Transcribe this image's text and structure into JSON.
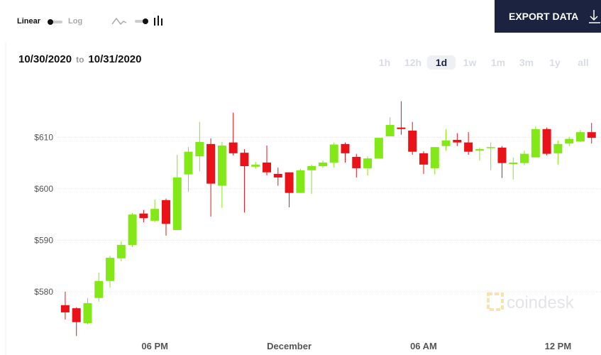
{
  "controls": {
    "linear": "Linear",
    "log": "Log",
    "export": "EXPORT DATA",
    "date_from": "10/30/2020",
    "date_sep": "to",
    "date_to": "10/31/2020",
    "ranges": [
      "1h",
      "12h",
      "1d",
      "1w",
      "1m",
      "3m",
      "1y",
      "all"
    ],
    "selected_range": "1d",
    "watermark": "coindesk"
  },
  "chart_data": {
    "type": "candlestick",
    "up_color": "#83e817",
    "down_color": "#ea1219",
    "grid": true,
    "x": [
      14,
      14.5,
      15,
      15.5,
      16,
      16.5,
      17,
      17.5,
      18,
      18.5,
      19,
      19.5,
      20,
      20.5,
      21,
      21.5,
      22,
      22.5,
      23,
      23.5,
      24,
      24.5,
      25,
      25.5,
      26,
      26.5,
      27,
      27.5,
      28,
      28.5,
      29,
      29.5,
      30,
      30.5,
      31,
      31.5,
      32,
      32.5,
      33,
      33.5,
      34,
      34.5,
      35,
      35.5,
      36,
      36.5,
      37,
      37.5
    ],
    "open": [
      577.4,
      576.8,
      573.9,
      578.8,
      582.1,
      586.5,
      589.1,
      595.2,
      593.8,
      597.8,
      592.0,
      602.8,
      606.3,
      608.7,
      600.6,
      609.0,
      607.0,
      604.3,
      605.1,
      602.9,
      603.2,
      599.2,
      603.6,
      604.4,
      605.1,
      608.7,
      606.2,
      604.0,
      605.9,
      610.2,
      611.9,
      611.3,
      606.9,
      604.0,
      608.3,
      609.5,
      609.0,
      607.4,
      607.9,
      608.0,
      604.8,
      605.0,
      606.1,
      611.6,
      606.9,
      608.8,
      609.2,
      611.0
    ],
    "high": [
      580.0,
      577.0,
      578.8,
      583.7,
      587.0,
      589.8,
      595.3,
      595.9,
      597.9,
      598.1,
      606.6,
      608.1,
      613.0,
      609.8,
      609.1,
      614.8,
      607.7,
      605.2,
      608.4,
      604.1,
      603.2,
      603.9,
      604.7,
      605.5,
      609.0,
      609.0,
      606.8,
      606.3,
      609.9,
      613.9,
      617.0,
      613.0,
      607.3,
      608.1,
      611.6,
      610.8,
      611.0,
      608.0,
      609.0,
      608.3,
      606.1,
      607.4,
      612.1,
      611.9,
      609.4,
      610.1,
      611.4,
      612.8
    ],
    "low": [
      574.6,
      571.4,
      573.7,
      578.1,
      580.8,
      585.9,
      588.7,
      593.5,
      593.5,
      590.9,
      592.0,
      599.4,
      603.4,
      594.6,
      596.3,
      606.5,
      595.4,
      603.9,
      602.6,
      600.6,
      596.4,
      599.2,
      599.0,
      604.1,
      604.1,
      605.1,
      602.2,
      602.6,
      605.9,
      610.2,
      610.5,
      606.6,
      602.9,
      602.8,
      607.4,
      608.3,
      606.6,
      605.5,
      603.6,
      602.1,
      601.8,
      604.6,
      606.1,
      606.5,
      604.7,
      608.3,
      609.1,
      608.8
    ],
    "close": [
      576.0,
      574.1,
      577.8,
      582.1,
      586.6,
      589.1,
      595.0,
      594.3,
      596.1,
      593.2,
      602.2,
      607.2,
      609.1,
      601.0,
      608.4,
      606.9,
      604.4,
      604.7,
      603.2,
      602.2,
      599.2,
      603.6,
      604.4,
      605.1,
      608.6,
      606.9,
      604.0,
      605.9,
      609.9,
      612.4,
      611.6,
      607.2,
      604.7,
      608.1,
      609.4,
      609.0,
      607.2,
      607.7,
      608.1,
      605.0,
      605.1,
      606.8,
      611.6,
      606.8,
      608.7,
      609.7,
      611.0,
      609.9
    ],
    "xlim": [
      11.88,
      37.92
    ],
    "xticks": [
      {
        "value": 18,
        "label": "06 PM"
      },
      {
        "value": 24,
        "label": "December"
      },
      {
        "value": 30,
        "label": "06 AM"
      },
      {
        "value": 36,
        "label": "12 PM"
      }
    ],
    "ylim": [
      569.1,
      621.5
    ],
    "yticks": [
      {
        "value": 580,
        "label": "$580"
      },
      {
        "value": 590,
        "label": "$590"
      },
      {
        "value": 600,
        "label": "$600"
      },
      {
        "value": 610,
        "label": "$610"
      }
    ]
  }
}
